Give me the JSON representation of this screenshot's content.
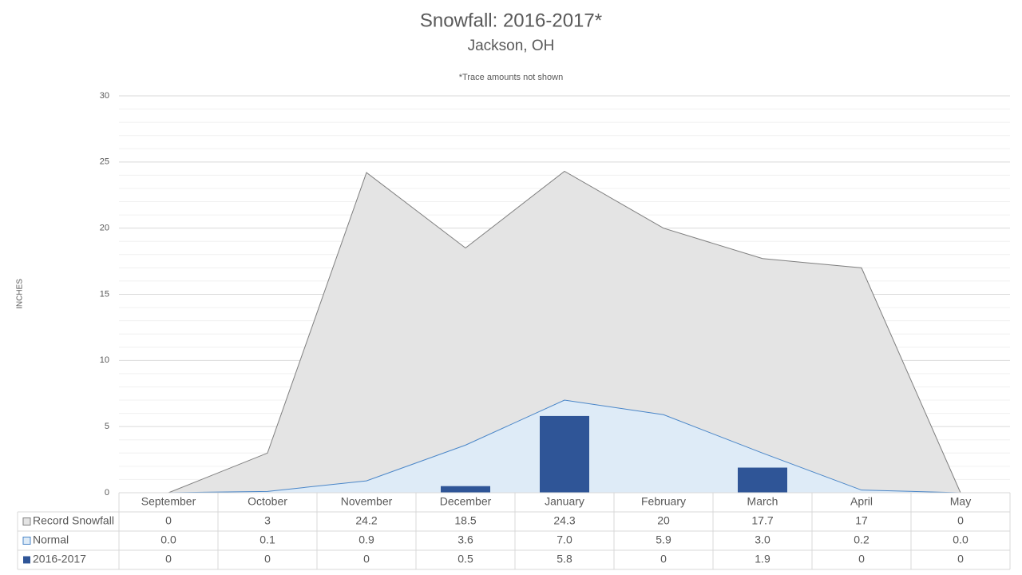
{
  "chart_data": {
    "type": "combo",
    "title": "Snowfall: 2016-2017*",
    "subtitle": "Jackson, OH",
    "annotation": "*Trace amounts not shown",
    "y_label": "INCHES",
    "categories": [
      "September",
      "October",
      "November",
      "December",
      "January",
      "February",
      "March",
      "April",
      "May"
    ],
    "series": [
      {
        "name": "Record Snowfall",
        "type": "area",
        "color": "#e4e4e4",
        "line_color": "#7f7f7f",
        "values": [
          0,
          3,
          24.2,
          18.5,
          24.3,
          20,
          17.7,
          17,
          0
        ]
      },
      {
        "name": "Normal",
        "type": "area",
        "color": "#deebf7",
        "line_color": "#4a86c8",
        "values": [
          0,
          0.1,
          0.9,
          3.6,
          7,
          5.9,
          3,
          0.2,
          0
        ],
        "value_labels": [
          "0.0",
          "0.1",
          "0.9",
          "3.6",
          "7.0",
          "5.9",
          "3.0",
          "0.2",
          "0.0"
        ]
      },
      {
        "name": "2016-2017",
        "type": "bar",
        "color": "#2f5597",
        "values": [
          0,
          0,
          0,
          0.5,
          5.8,
          0,
          1.9,
          0,
          0
        ]
      }
    ],
    "ylim": [
      0,
      30
    ],
    "yticks": [
      0,
      5,
      10,
      15,
      20,
      25,
      30
    ],
    "grid": true,
    "legend": "data-table"
  }
}
